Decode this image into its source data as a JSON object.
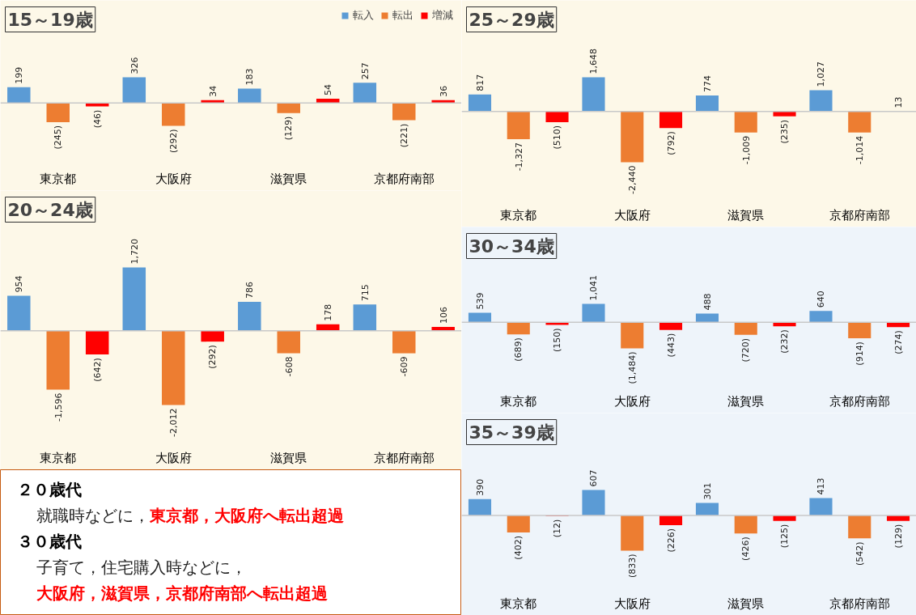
{
  "chart_data": [
    {
      "type": "bar",
      "title": "15～19歳",
      "categories": [
        "東京都",
        "大阪府",
        "滋賀県",
        "京都府南部"
      ],
      "legend": "top right",
      "data_labels": true,
      "series": [
        {
          "name": "転入",
          "color": "#5b9bd5",
          "values": [
            199,
            326,
            183,
            257
          ],
          "value_labels": [
            "199",
            "326",
            "183",
            "257"
          ]
        },
        {
          "name": "転出",
          "color": "#ed7d31",
          "values": [
            -245,
            -292,
            -129,
            -221
          ],
          "value_labels": [
            "(245)",
            "(292)",
            "(129)",
            "(221)"
          ]
        },
        {
          "name": "増減",
          "color": "#ff0000",
          "values": [
            -46,
            34,
            54,
            36
          ],
          "value_labels": [
            "(46)",
            "34",
            "54",
            "36"
          ]
        }
      ]
    },
    {
      "type": "bar",
      "title": "20～24歳",
      "categories": [
        "東京都",
        "大阪府",
        "滋賀県",
        "京都府南部"
      ],
      "data_labels": true,
      "series": [
        {
          "color": "#5b9bd5",
          "values": [
            954,
            1720,
            786,
            715
          ],
          "value_labels": [
            "954",
            "1,720",
            "786",
            "715"
          ]
        },
        {
          "color": "#ed7d31",
          "values": [
            -1596,
            -2012,
            -608,
            -609
          ],
          "value_labels": [
            "-1,596",
            "-2,012",
            "-608",
            "-609"
          ]
        },
        {
          "color": "#ff0000",
          "values": [
            -642,
            -292,
            178,
            106
          ],
          "value_labels": [
            "(642)",
            "(292)",
            "178",
            "106"
          ]
        }
      ]
    },
    {
      "type": "bar",
      "title": "25～29歳",
      "categories": [
        "東京都",
        "大阪府",
        "滋賀県",
        "京都府南部"
      ],
      "data_labels": true,
      "series": [
        {
          "color": "#5b9bd5",
          "values": [
            817,
            1648,
            774,
            1027
          ],
          "value_labels": [
            "817",
            "1,648",
            "774",
            "1,027"
          ]
        },
        {
          "color": "#ed7d31",
          "values": [
            -1327,
            -2440,
            -1009,
            -1014
          ],
          "value_labels": [
            "-1,327",
            "-2,440",
            "-1,009",
            "-1,014"
          ]
        },
        {
          "color": "#ff0000",
          "values": [
            -510,
            -792,
            -235,
            13
          ],
          "value_labels": [
            "(510)",
            "(792)",
            "(235)",
            "13"
          ]
        }
      ]
    },
    {
      "type": "bar",
      "title": "30～34歳",
      "categories": [
        "東京都",
        "大阪府",
        "滋賀県",
        "京都府南部"
      ],
      "data_labels": true,
      "series": [
        {
          "color": "#5b9bd5",
          "values": [
            539,
            1041,
            488,
            640
          ],
          "value_labels": [
            "539",
            "1,041",
            "488",
            "640"
          ]
        },
        {
          "color": "#ed7d31",
          "values": [
            -689,
            -1484,
            -720,
            -914
          ],
          "value_labels": [
            "(689)",
            "(1,484)",
            "(720)",
            "(914)"
          ]
        },
        {
          "color": "#ff0000",
          "values": [
            -150,
            -443,
            -232,
            -274
          ],
          "value_labels": [
            "(150)",
            "(443)",
            "(232)",
            "(274)"
          ]
        }
      ]
    },
    {
      "type": "bar",
      "title": "35～39歳",
      "categories": [
        "東京都",
        "大阪府",
        "滋賀県",
        "京都府南部"
      ],
      "data_labels": true,
      "series": [
        {
          "color": "#5b9bd5",
          "values": [
            390,
            607,
            301,
            413
          ],
          "value_labels": [
            "390",
            "607",
            "301",
            "413"
          ]
        },
        {
          "color": "#ed7d31",
          "values": [
            -402,
            -833,
            -426,
            -542
          ],
          "value_labels": [
            "(402)",
            "(833)",
            "(426)",
            "(542)"
          ]
        },
        {
          "color": "#ff0000",
          "values": [
            -12,
            -226,
            -125,
            -129
          ],
          "value_labels": [
            "(12)",
            "(226)",
            "(125)",
            "(129)"
          ]
        }
      ]
    },
    {
      "type": "other",
      "annotations": [
        "２０歳代",
        "就職時などに，",
        "東京都，大阪府へ転出超過",
        "３０歳代",
        "子育て，住宅購入時などに，",
        "大阪府，滋賀県，京都府南部へ転出超過"
      ]
    }
  ]
}
